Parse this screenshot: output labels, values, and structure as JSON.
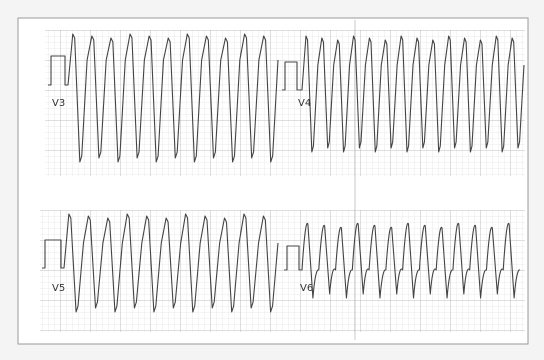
{
  "leads": {
    "top_left": "V3",
    "top_right": "V4",
    "bottom_left": "V5",
    "bottom_right": "V6"
  }
}
